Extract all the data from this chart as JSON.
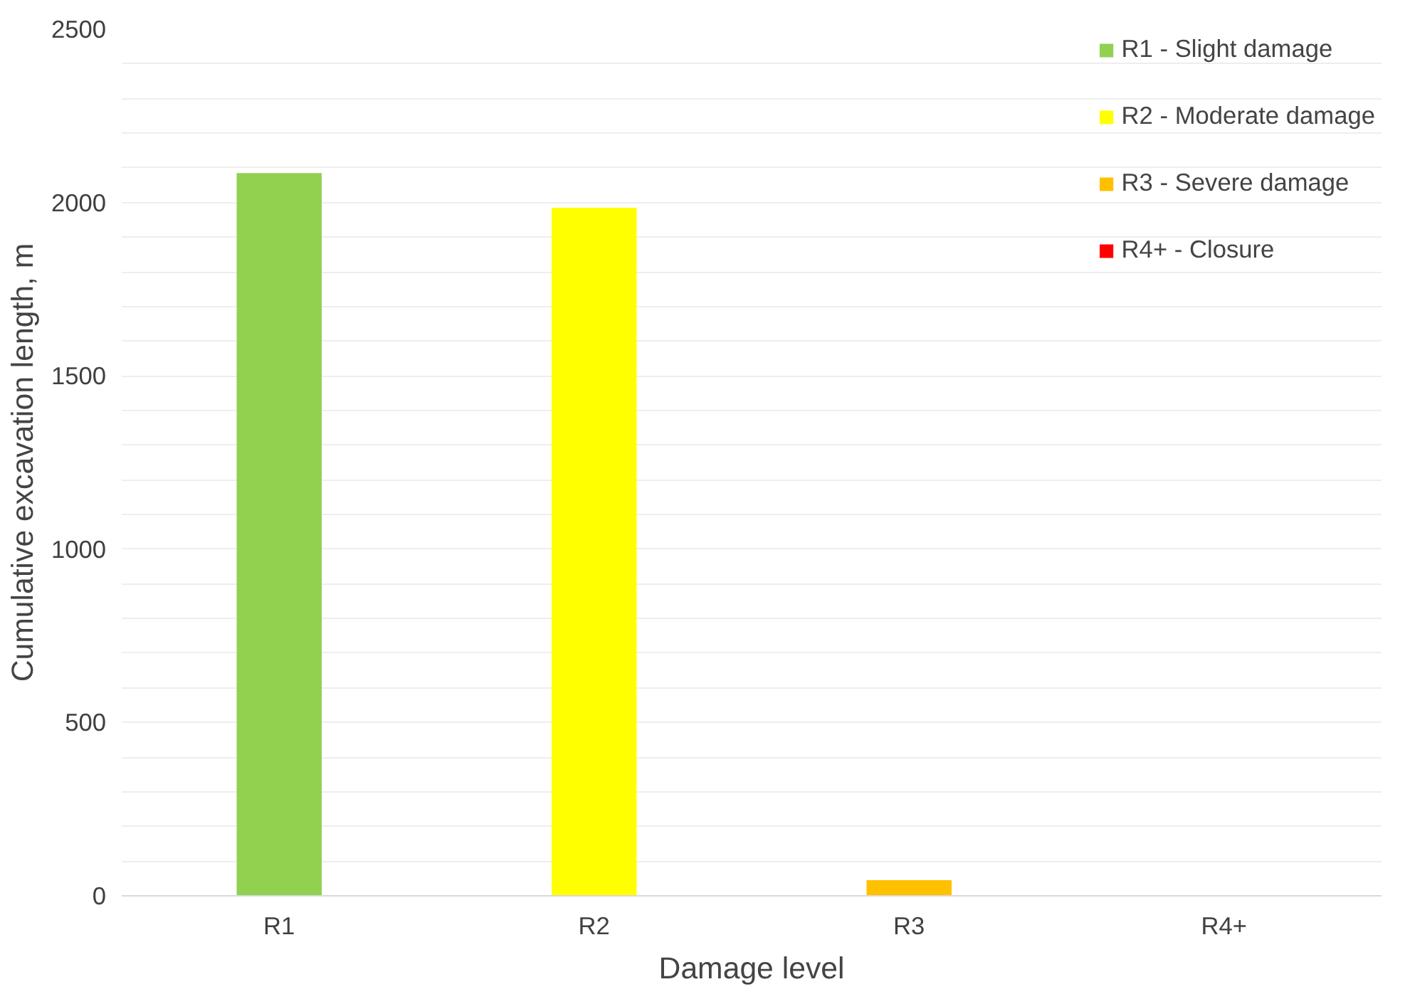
{
  "chart_data": {
    "type": "bar",
    "xlabel": "Damage level",
    "ylabel": "Cumulative excavation length, m",
    "categories": [
      "R1",
      "R2",
      "R3",
      "R4+"
    ],
    "series": [
      {
        "name": "R1 - Slight damage",
        "color": "#92d050",
        "values": [
          2085,
          null,
          null,
          null
        ]
      },
      {
        "name": "R2 - Moderate damage",
        "color": "#ffff00",
        "values": [
          null,
          1985,
          null,
          null
        ]
      },
      {
        "name": "R3 - Severe damage",
        "color": "#ffc000",
        "values": [
          null,
          null,
          45,
          null
        ]
      },
      {
        "name": "R4+ - Closure",
        "color": "#ff0000",
        "values": [
          null,
          null,
          null,
          0
        ]
      }
    ],
    "ylim": [
      0,
      2500
    ],
    "yticks": [
      0,
      {
        "value": 100,
        "label": null
      },
      {
        "value": 200,
        "label": null
      },
      {
        "value": 300,
        "label": null
      },
      {
        "value": 400,
        "label": null
      },
      500,
      {
        "value": 600,
        "label": null
      },
      {
        "value": 700,
        "label": null
      },
      {
        "value": 800,
        "label": null
      },
      {
        "value": 900,
        "label": null
      },
      1000,
      {
        "value": 1100,
        "label": null
      },
      {
        "value": 1200,
        "label": null
      },
      {
        "value": 1300,
        "label": null
      },
      {
        "value": 1400,
        "label": null
      },
      1500,
      {
        "value": 1600,
        "label": null
      },
      {
        "value": 1700,
        "label": null
      },
      {
        "value": 1800,
        "label": null
      },
      {
        "value": 1900,
        "label": null
      },
      2000,
      {
        "value": 2100,
        "label": null
      },
      {
        "value": 2200,
        "label": null
      },
      {
        "value": 2300,
        "label": null
      },
      {
        "value": 2400,
        "label": null
      },
      2500
    ],
    "grid": "y",
    "legend": "top right"
  }
}
